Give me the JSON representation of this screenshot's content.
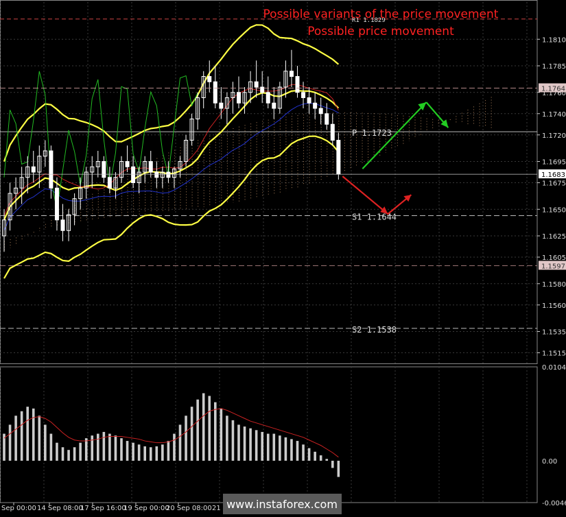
{
  "chart_data": [
    {
      "type": "candlestick",
      "title": "Possible variants of the price movement",
      "subtitle": "Possible price movement",
      "ylim": [
        1.1505,
        1.1845
      ],
      "y_ticks": [
        "1.1810",
        "1.1785",
        "1.1760",
        "1.1740",
        "1.1720",
        "1.1695",
        "1.1675",
        "1.1650",
        "1.1625",
        "1.1605",
        "1.1580",
        "1.1560",
        "1.1535",
        "1.1515"
      ],
      "x_ticks": [
        "Sep 00:00",
        "14 Sep 08:00",
        "17 Sep 16:00",
        "19 Sep 00:00",
        "20 Sep 08:00",
        "21 Se"
      ],
      "current_price": "1.1683",
      "price_tags": [
        "1.1764",
        "1.1597"
      ],
      "levels": [
        {
          "label": "R1 1.1829",
          "value": 1.1829,
          "color": "#cc4444"
        },
        {
          "label": "P  1.1723",
          "value": 1.1723,
          "color": "#bbbbbb"
        },
        {
          "label": "S1 1.1644",
          "value": 1.1644,
          "color": "#bbbbbb"
        },
        {
          "label": "S2 1.1538",
          "value": 1.1538,
          "color": "#bbbbbb"
        }
      ],
      "candles": [
        [
          1.1625,
          1.165,
          1.161,
          1.164
        ],
        [
          1.164,
          1.1675,
          1.163,
          1.1665
        ],
        [
          1.1665,
          1.168,
          1.165,
          1.167
        ],
        [
          1.167,
          1.169,
          1.1655,
          1.168
        ],
        [
          1.168,
          1.17,
          1.1665,
          1.169
        ],
        [
          1.169,
          1.1705,
          1.1675,
          1.1685
        ],
        [
          1.1685,
          1.171,
          1.167,
          1.17
        ],
        [
          1.17,
          1.1715,
          1.169,
          1.1705
        ],
        [
          1.1705,
          1.171,
          1.166,
          1.167
        ],
        [
          1.167,
          1.168,
          1.163,
          1.164
        ],
        [
          1.164,
          1.1655,
          1.162,
          1.163
        ],
        [
          1.163,
          1.165,
          1.162,
          1.1645
        ],
        [
          1.1645,
          1.1665,
          1.1635,
          1.166
        ],
        [
          1.166,
          1.168,
          1.165,
          1.167
        ],
        [
          1.167,
          1.169,
          1.166,
          1.1685
        ],
        [
          1.1685,
          1.17,
          1.167,
          1.169
        ],
        [
          1.169,
          1.1705,
          1.168,
          1.1695
        ],
        [
          1.1695,
          1.17,
          1.1675,
          1.168
        ],
        [
          1.168,
          1.169,
          1.1665,
          1.167
        ],
        [
          1.167,
          1.1685,
          1.166,
          1.168
        ],
        [
          1.168,
          1.17,
          1.1675,
          1.1695
        ],
        [
          1.1695,
          1.171,
          1.1685,
          1.169
        ],
        [
          1.169,
          1.17,
          1.167,
          1.1675
        ],
        [
          1.1675,
          1.169,
          1.1665,
          1.1685
        ],
        [
          1.1685,
          1.17,
          1.1675,
          1.1695
        ],
        [
          1.1695,
          1.1705,
          1.168,
          1.1685
        ],
        [
          1.1685,
          1.1695,
          1.167,
          1.168
        ],
        [
          1.168,
          1.169,
          1.167,
          1.1685
        ],
        [
          1.1685,
          1.1695,
          1.1675,
          1.168
        ],
        [
          1.168,
          1.169,
          1.167,
          1.1688
        ],
        [
          1.1688,
          1.17,
          1.168,
          1.1695
        ],
        [
          1.1695,
          1.172,
          1.169,
          1.1715
        ],
        [
          1.1715,
          1.174,
          1.171,
          1.1735
        ],
        [
          1.1735,
          1.176,
          1.1725,
          1.1755
        ],
        [
          1.1755,
          1.178,
          1.1745,
          1.1775
        ],
        [
          1.1775,
          1.179,
          1.176,
          1.177
        ],
        [
          1.177,
          1.1785,
          1.1745,
          1.175
        ],
        [
          1.175,
          1.1765,
          1.1735,
          1.1745
        ],
        [
          1.1745,
          1.176,
          1.173,
          1.1755
        ],
        [
          1.1755,
          1.177,
          1.174,
          1.176
        ],
        [
          1.176,
          1.1775,
          1.1745,
          1.175
        ],
        [
          1.175,
          1.1765,
          1.174,
          1.176
        ],
        [
          1.176,
          1.178,
          1.175,
          1.177
        ],
        [
          1.177,
          1.179,
          1.1755,
          1.1765
        ],
        [
          1.1765,
          1.178,
          1.175,
          1.176
        ],
        [
          1.176,
          1.1775,
          1.1745,
          1.175
        ],
        [
          1.175,
          1.1765,
          1.1735,
          1.1745
        ],
        [
          1.1745,
          1.177,
          1.174,
          1.1765
        ],
        [
          1.1765,
          1.179,
          1.1755,
          1.178
        ],
        [
          1.178,
          1.18,
          1.1765,
          1.1775
        ],
        [
          1.1775,
          1.1785,
          1.1755,
          1.176
        ],
        [
          1.176,
          1.177,
          1.1745,
          1.1755
        ],
        [
          1.1755,
          1.1765,
          1.174,
          1.175
        ],
        [
          1.175,
          1.176,
          1.1735,
          1.1745
        ],
        [
          1.1745,
          1.1755,
          1.173,
          1.174
        ],
        [
          1.174,
          1.175,
          1.1725,
          1.173
        ],
        [
          1.173,
          1.174,
          1.171,
          1.1715
        ],
        [
          1.1715,
          1.1722,
          1.1678,
          1.1683
        ]
      ],
      "macd": {
        "ylim": [
          -0.00465,
          0.01043
        ],
        "y_ticks": [
          "0.01043",
          "0.00",
          "-0.00465"
        ],
        "histogram": [
          0.003,
          0.004,
          0.005,
          0.0055,
          0.006,
          0.0058,
          0.005,
          0.004,
          0.003,
          0.002,
          0.0015,
          0.0012,
          0.0015,
          0.002,
          0.0025,
          0.0028,
          0.003,
          0.0032,
          0.003,
          0.0028,
          0.0025,
          0.0022,
          0.002,
          0.0018,
          0.0016,
          0.0015,
          0.0016,
          0.0018,
          0.0022,
          0.003,
          0.004,
          0.005,
          0.006,
          0.0068,
          0.0075,
          0.0072,
          0.0065,
          0.0058,
          0.005,
          0.0045,
          0.004,
          0.0038,
          0.0036,
          0.0034,
          0.0032,
          0.003,
          0.003,
          0.0028,
          0.0026,
          0.0024,
          0.0022,
          0.0018,
          0.0014,
          0.001,
          0.0006,
          0.0002,
          -0.0008,
          -0.0018
        ],
        "signal": [
          0.0025,
          0.003,
          0.0035,
          0.004,
          0.0045,
          0.0048,
          0.0049,
          0.0047,
          0.0043,
          0.0037,
          0.0031,
          0.0026,
          0.0023,
          0.0022,
          0.0022,
          0.0023,
          0.0024,
          0.0026,
          0.0027,
          0.0027,
          0.0027,
          0.0026,
          0.0025,
          0.0024,
          0.0022,
          0.0021,
          0.002,
          0.002,
          0.0021,
          0.0023,
          0.0027,
          0.0032,
          0.0038,
          0.0044,
          0.005,
          0.0055,
          0.0057,
          0.0058,
          0.0056,
          0.0053,
          0.005,
          0.0047,
          0.0044,
          0.0042,
          0.004,
          0.0038,
          0.0036,
          0.0034,
          0.0032,
          0.003,
          0.0028,
          0.0026,
          0.0023,
          0.002,
          0.0017,
          0.0013,
          0.0009,
          0.0004
        ]
      }
    }
  ],
  "watermark": "www.instaforex.com",
  "colors": {
    "background": "#000000",
    "grid": "#3a3a3a",
    "candle": "#ffffff",
    "bollinger": "#ffff44",
    "tenkan": "#cc2222",
    "kijun": "#2233cc",
    "chikou": "#22bb22",
    "cloud": "#d8a070",
    "projection_up": "#22cc22",
    "projection_down": "#dd2222",
    "title": "#ff2222"
  }
}
